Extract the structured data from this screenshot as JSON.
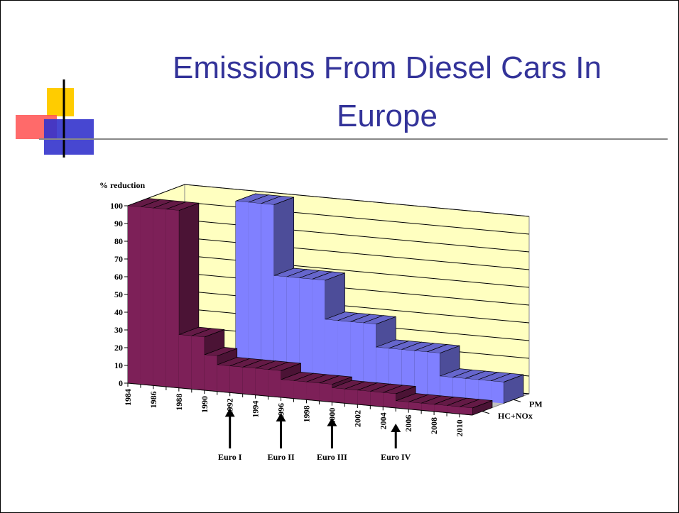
{
  "chart_data": {
    "type": "area3d",
    "title_lines": [
      "Emissions From Diesel Cars In",
      "Europe"
    ],
    "y_label": "% reduction",
    "categories": [
      "1984",
      null,
      "1986",
      null,
      "1988",
      null,
      "1990",
      null,
      "1992",
      null,
      "1994",
      null,
      "1996",
      null,
      "1998",
      null,
      "2000",
      null,
      "2002",
      null,
      "2004",
      null,
      "2006",
      null,
      "2008",
      null,
      "2010"
    ],
    "series": [
      {
        "name": "HC+NOx",
        "color": "#7d2058",
        "values": [
          100,
          100,
          100,
          100,
          30,
          30,
          20,
          15,
          15,
          15,
          15,
          15,
          10,
          10,
          10,
          10,
          8,
          8,
          8,
          8,
          8,
          4,
          4,
          4,
          4,
          4,
          4
        ]
      },
      {
        "name": "PM",
        "color": "#8080ff",
        "values": [
          null,
          null,
          null,
          null,
          null,
          null,
          100,
          100,
          100,
          60,
          60,
          60,
          60,
          38,
          38,
          38,
          38,
          25,
          25,
          25,
          25,
          25,
          12,
          12,
          12,
          12,
          12
        ]
      }
    ],
    "ylim": [
      0,
      100
    ],
    "yticks": [
      0,
      10,
      20,
      30,
      40,
      50,
      60,
      70,
      80,
      90,
      100
    ],
    "grid": true,
    "annotations": [
      {
        "text": "Euro I",
        "category": 8
      },
      {
        "text": "Euro II",
        "category": 12
      },
      {
        "text": "Euro III",
        "category": 16
      },
      {
        "text": "Euro IV",
        "category": 21
      }
    ]
  }
}
